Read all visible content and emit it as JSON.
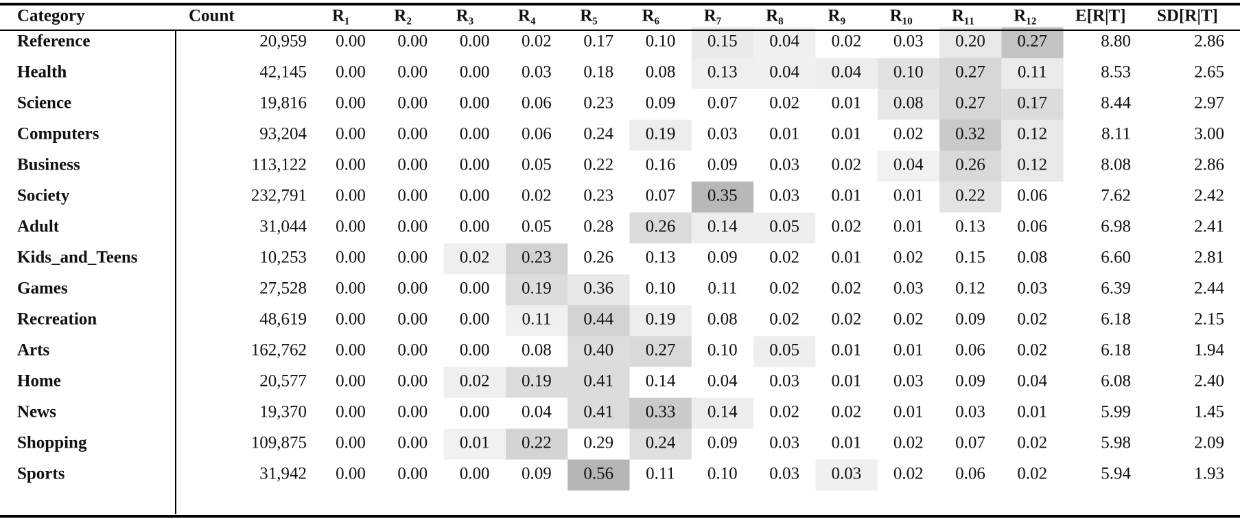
{
  "table": {
    "header": [
      "Category",
      "Count",
      "R₁",
      "R₂",
      "R₃",
      "R₄",
      "R₅",
      "R₆",
      "R₇",
      "R₈",
      "R₉",
      "R₁₀",
      "R₁₁",
      "R₁₂",
      "E[R|T]",
      "SD[R|T]"
    ],
    "rows": [
      [
        "Reference",
        "20,959",
        "0.00",
        "0.00",
        "0.00",
        "0.02",
        "0.17",
        "0.10",
        "0.15",
        "0.04",
        "0.02",
        "0.03",
        "0.20",
        "0.27",
        "8.80",
        "2.86"
      ],
      [
        "Health",
        "42,145",
        "0.00",
        "0.00",
        "0.00",
        "0.03",
        "0.18",
        "0.08",
        "0.13",
        "0.04",
        "0.04",
        "0.10",
        "0.27",
        "0.11",
        "8.53",
        "2.65"
      ],
      [
        "Science",
        "19,816",
        "0.00",
        "0.00",
        "0.00",
        "0.06",
        "0.23",
        "0.09",
        "0.07",
        "0.02",
        "0.01",
        "0.08",
        "0.27",
        "0.17",
        "8.44",
        "2.97"
      ],
      [
        "Computers",
        "93,204",
        "0.00",
        "0.00",
        "0.00",
        "0.06",
        "0.24",
        "0.19",
        "0.03",
        "0.01",
        "0.01",
        "0.02",
        "0.32",
        "0.12",
        "8.11",
        "3.00"
      ],
      [
        "Business",
        "113,122",
        "0.00",
        "0.00",
        "0.00",
        "0.05",
        "0.22",
        "0.16",
        "0.09",
        "0.03",
        "0.02",
        "0.04",
        "0.26",
        "0.12",
        "8.08",
        "2.86"
      ],
      [
        "Society",
        "232,791",
        "0.00",
        "0.00",
        "0.00",
        "0.02",
        "0.23",
        "0.07",
        "0.35",
        "0.03",
        "0.01",
        "0.01",
        "0.22",
        "0.06",
        "7.62",
        "2.42"
      ],
      [
        "Adult",
        "31,044",
        "0.00",
        "0.00",
        "0.00",
        "0.05",
        "0.28",
        "0.26",
        "0.14",
        "0.05",
        "0.02",
        "0.01",
        "0.13",
        "0.06",
        "6.98",
        "2.41"
      ],
      [
        "Kids_and_Teens",
        "10,253",
        "0.00",
        "0.00",
        "0.02",
        "0.23",
        "0.26",
        "0.13",
        "0.09",
        "0.02",
        "0.01",
        "0.02",
        "0.15",
        "0.08",
        "6.60",
        "2.81"
      ],
      [
        "Games",
        "27,528",
        "0.00",
        "0.00",
        "0.00",
        "0.19",
        "0.36",
        "0.10",
        "0.11",
        "0.02",
        "0.02",
        "0.03",
        "0.12",
        "0.03",
        "6.39",
        "2.44"
      ],
      [
        "Recreation",
        "48,619",
        "0.00",
        "0.00",
        "0.00",
        "0.11",
        "0.44",
        "0.19",
        "0.08",
        "0.02",
        "0.02",
        "0.02",
        "0.09",
        "0.02",
        "6.18",
        "2.15"
      ],
      [
        "Arts",
        "162,762",
        "0.00",
        "0.00",
        "0.00",
        "0.08",
        "0.40",
        "0.27",
        "0.10",
        "0.05",
        "0.01",
        "0.01",
        "0.06",
        "0.02",
        "6.18",
        "1.94"
      ],
      [
        "Home",
        "20,577",
        "0.00",
        "0.00",
        "0.02",
        "0.19",
        "0.41",
        "0.14",
        "0.04",
        "0.03",
        "0.01",
        "0.03",
        "0.09",
        "0.04",
        "6.08",
        "2.40"
      ],
      [
        "News",
        "19,370",
        "0.00",
        "0.00",
        "0.00",
        "0.04",
        "0.41",
        "0.33",
        "0.14",
        "0.02",
        "0.02",
        "0.01",
        "0.03",
        "0.01",
        "5.99",
        "1.45"
      ],
      [
        "Shopping",
        "109,875",
        "0.00",
        "0.00",
        "0.01",
        "0.22",
        "0.29",
        "0.24",
        "0.09",
        "0.03",
        "0.01",
        "0.02",
        "0.07",
        "0.02",
        "5.98",
        "2.09"
      ],
      [
        "Sports",
        "31,942",
        "0.00",
        "0.00",
        "0.00",
        "0.09",
        "0.56",
        "0.11",
        "0.10",
        "0.03",
        "0.03",
        "0.02",
        "0.06",
        "0.02",
        "5.94",
        "1.93"
      ]
    ]
  }
}
